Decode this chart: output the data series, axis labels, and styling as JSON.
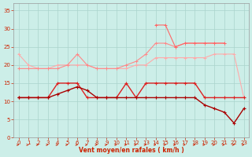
{
  "x": [
    0,
    1,
    2,
    3,
    4,
    5,
    6,
    7,
    8,
    9,
    10,
    11,
    12,
    13,
    14,
    15,
    16,
    17,
    18,
    19,
    20,
    21,
    22,
    23
  ],
  "line_lightest": [
    23,
    20,
    19,
    19,
    20,
    20,
    20,
    20,
    19,
    19,
    19,
    19,
    20,
    20,
    22,
    22,
    22,
    22,
    22,
    22,
    23,
    23,
    23,
    11
  ],
  "line_light1": [
    19,
    19,
    19,
    19,
    19,
    20,
    23,
    20,
    19,
    19,
    19,
    20,
    21,
    23,
    26,
    26,
    25,
    26,
    26,
    26,
    26,
    26,
    null,
    null
  ],
  "line_light2": [
    null,
    null,
    null,
    null,
    null,
    null,
    null,
    null,
    null,
    null,
    null,
    null,
    null,
    null,
    31,
    31,
    25,
    26,
    26,
    26,
    26,
    26,
    null,
    null
  ],
  "line_dark1": [
    11,
    11,
    11,
    11,
    15,
    15,
    15,
    11,
    11,
    11,
    11,
    15,
    11,
    15,
    15,
    15,
    15,
    15,
    15,
    11,
    11,
    11,
    11,
    11
  ],
  "line_dark2": [
    11,
    11,
    11,
    11,
    12,
    13,
    14,
    13,
    11,
    11,
    11,
    11,
    11,
    11,
    11,
    11,
    11,
    11,
    11,
    9,
    8,
    7,
    4,
    8
  ],
  "bg_color": "#cceee8",
  "grid_color": "#aad4cc",
  "line_lightest_color": "#ffaaaa",
  "line_light1_color": "#ff8888",
  "line_light2_color": "#ff6666",
  "line_dark1_color": "#dd2222",
  "line_dark2_color": "#aa0000",
  "xlabel": "Vent moyen/en rafales ( km/h )",
  "ylim": [
    0,
    37
  ],
  "xlim": [
    -0.5,
    23.5
  ],
  "yticks": [
    0,
    5,
    10,
    15,
    20,
    25,
    30,
    35
  ],
  "xticks": [
    0,
    1,
    2,
    3,
    4,
    5,
    6,
    7,
    8,
    9,
    10,
    11,
    12,
    13,
    14,
    15,
    16,
    17,
    18,
    19,
    20,
    21,
    22,
    23
  ]
}
